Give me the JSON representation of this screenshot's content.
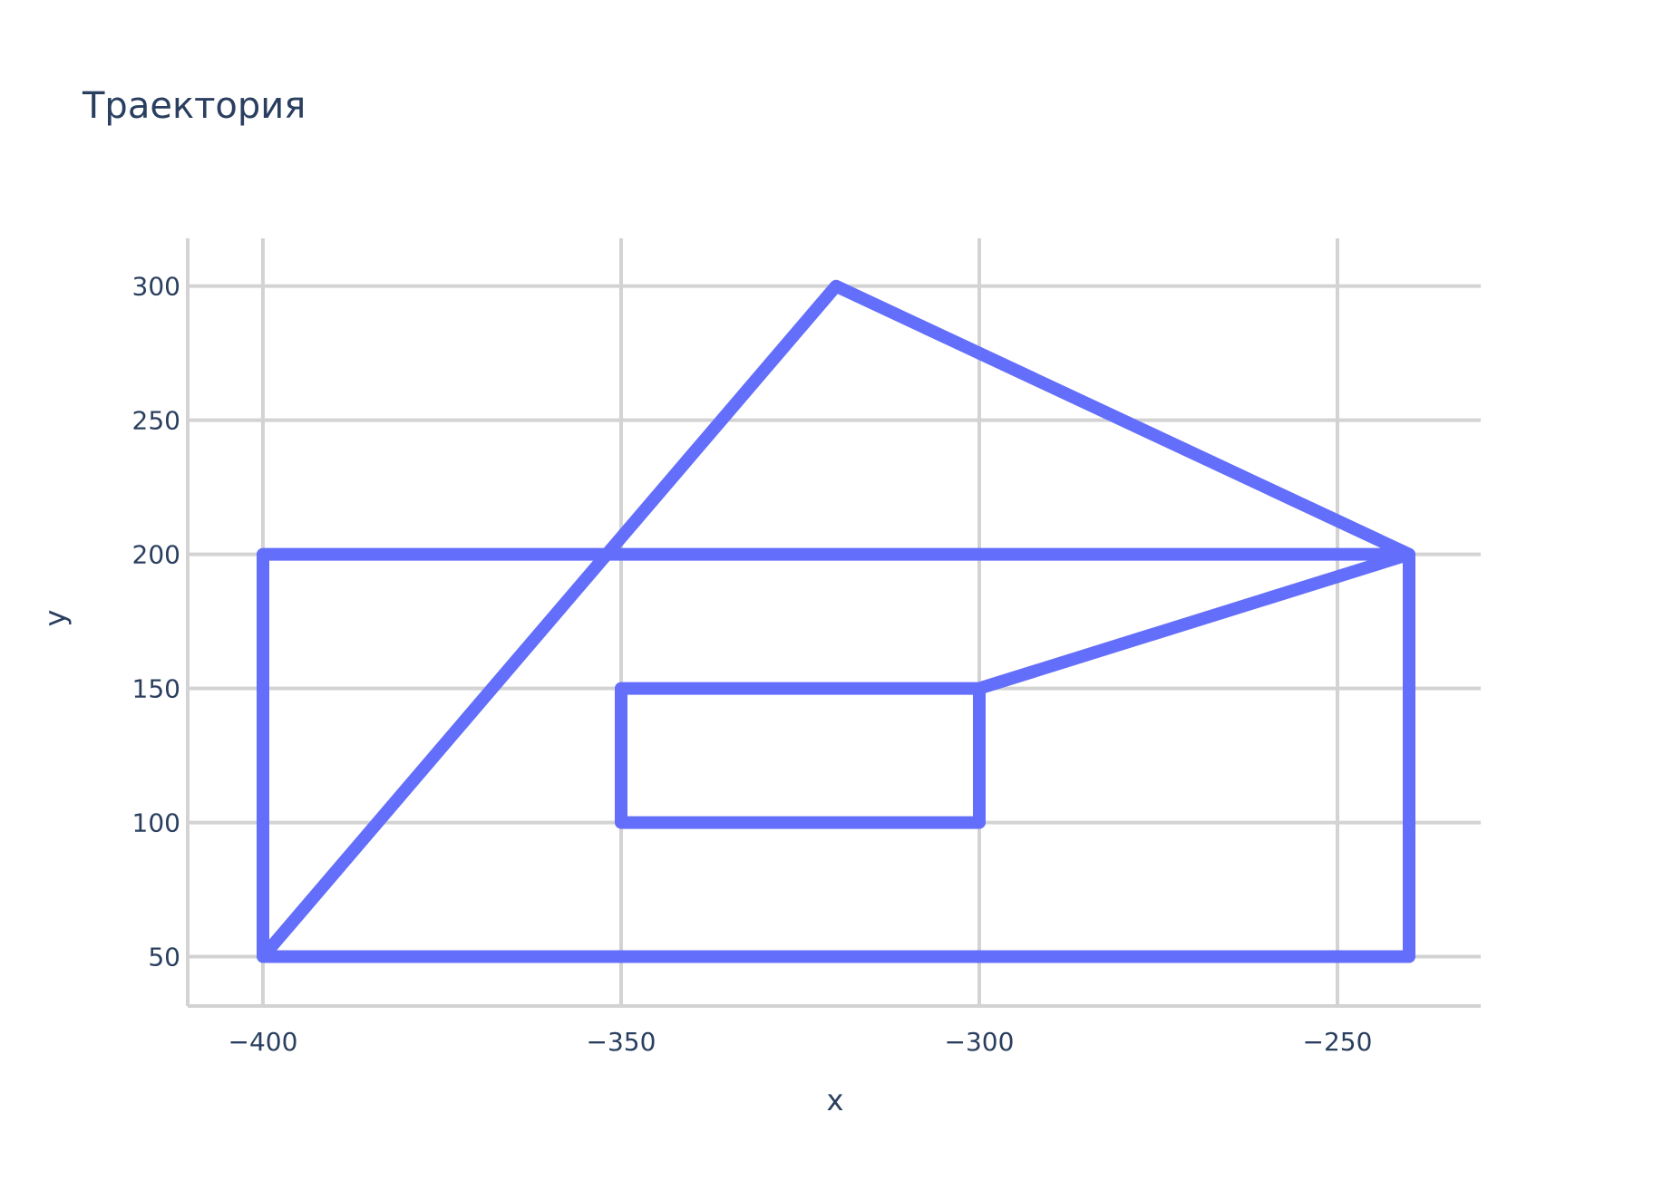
{
  "chart_data": {
    "type": "line",
    "title": "Траектория",
    "xlabel": "x",
    "ylabel": "y",
    "xlim": [
      -410.5,
      -230
    ],
    "ylim": [
      31.6,
      317.8
    ],
    "xticks": [
      {
        "value": -400,
        "label": "−400"
      },
      {
        "value": -350,
        "label": "−350"
      },
      {
        "value": -300,
        "label": "−300"
      },
      {
        "value": -250,
        "label": "−250"
      }
    ],
    "yticks": [
      {
        "value": 50,
        "label": "50"
      },
      {
        "value": 100,
        "label": "100"
      },
      {
        "value": 150,
        "label": "150"
      },
      {
        "value": 200,
        "label": "200"
      },
      {
        "value": 250,
        "label": "250"
      },
      {
        "value": 300,
        "label": "300"
      }
    ],
    "grid": true,
    "legend": "none",
    "series": [
      {
        "color": "#636efa",
        "x": [
          -400,
          -240,
          -240,
          -400,
          -400,
          -320,
          -240,
          -300,
          -300,
          -350,
          -350,
          -300
        ],
        "y": [
          50,
          50,
          200,
          200,
          50,
          300,
          200,
          150,
          100,
          100,
          150,
          150
        ]
      }
    ],
    "colors": {
      "line": "#636efa",
      "grid": "#d3d3d3",
      "text": "#2a3f5f",
      "background": "#ffffff"
    }
  }
}
